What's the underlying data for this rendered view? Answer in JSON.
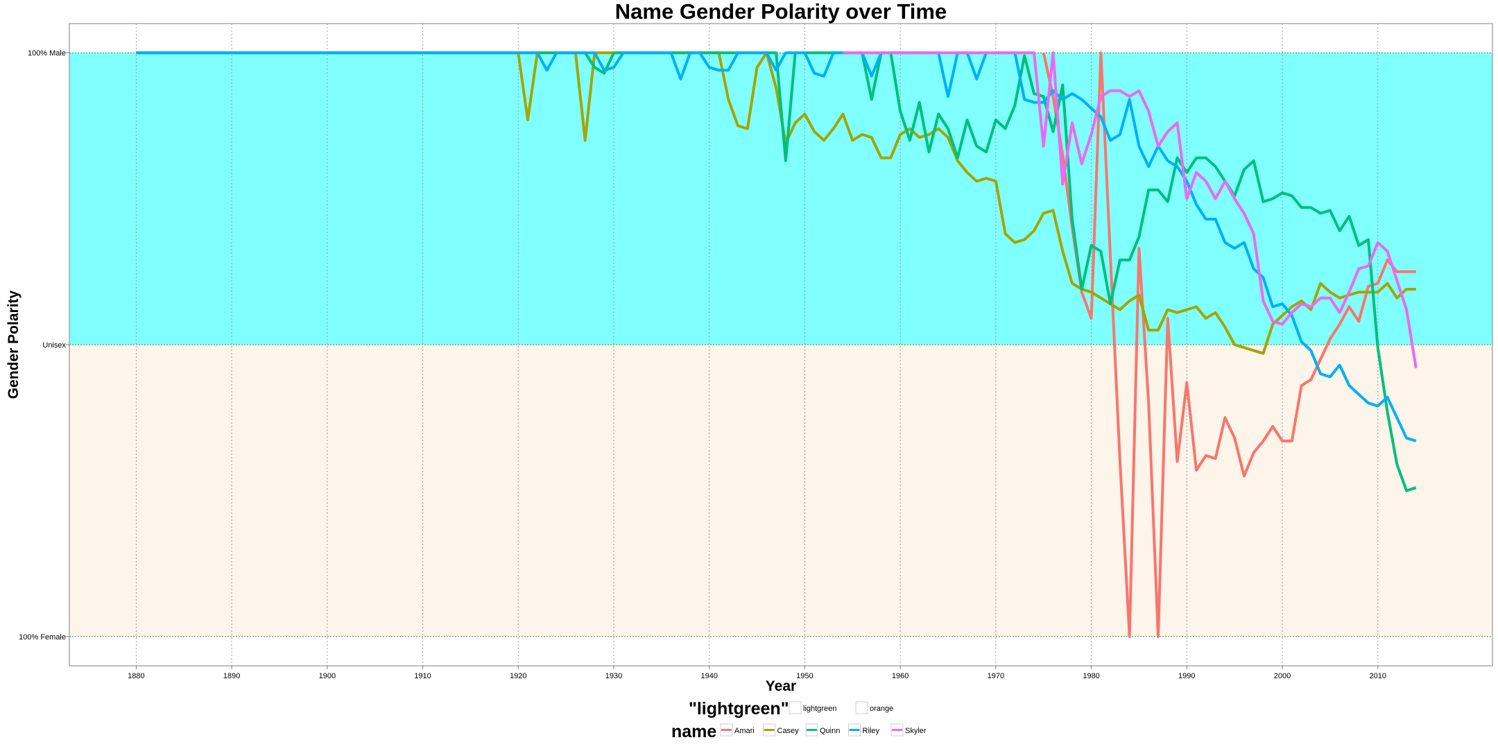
{
  "chart_data": {
    "type": "line",
    "title": "Name Gender Polarity over Time",
    "xlabel": "Year",
    "ylabel": "Gender Polarity",
    "xlim": [
      1873,
      2022
    ],
    "ylim": [
      -1.1,
      1.1
    ],
    "x_ticks": [
      1880,
      1890,
      1900,
      1910,
      1920,
      1930,
      1940,
      1950,
      1960,
      1970,
      1980,
      1990,
      2000,
      2010
    ],
    "y_ticks": [
      {
        "value": 1,
        "label": "100% Male"
      },
      {
        "value": 0,
        "label": "Unisex"
      },
      {
        "value": -1,
        "label": "100% Female"
      }
    ],
    "grid": true,
    "bands": [
      {
        "from": 0,
        "to": 1,
        "color": "#80ffff",
        "label": "lightgreen"
      },
      {
        "from": -1,
        "to": 0,
        "color": "#fdf4ea",
        "label": "orange"
      }
    ],
    "legend": {
      "position": "bottom",
      "fill_title": "\"lightgreen\"",
      "fill_entries": [
        "lightgreen",
        "orange"
      ],
      "color_title": "name"
    },
    "series": [
      {
        "name": "Amari",
        "color": "#f8766d",
        "x": [
          1975,
          1976,
          1977,
          1978,
          1979,
          1980,
          1981,
          1982,
          1983,
          1984,
          1985,
          1986,
          1987,
          1988,
          1989,
          1990,
          1991,
          1992,
          1993,
          1994,
          1995,
          1996,
          1997,
          1998,
          1999,
          2000,
          2001,
          2002,
          2003,
          2004,
          2005,
          2006,
          2007,
          2008,
          2009,
          2010,
          2011,
          2012,
          2013,
          2014
        ],
        "y": [
          1.0,
          0.85,
          0.65,
          0.4,
          0.18,
          0.09,
          1.0,
          0.3,
          -0.4,
          -1.0,
          0.33,
          -0.2,
          -1.0,
          0.09,
          -0.4,
          -0.13,
          -0.43,
          -0.38,
          -0.39,
          -0.25,
          -0.32,
          -0.45,
          -0.37,
          -0.33,
          -0.28,
          -0.33,
          -0.33,
          -0.14,
          -0.12,
          -0.05,
          0.02,
          0.07,
          0.13,
          0.08,
          0.2,
          0.21,
          0.29,
          0.25,
          0.25,
          0.25
        ]
      },
      {
        "name": "Casey",
        "color": "#a3a500",
        "x": [
          1880,
          1919,
          1920,
          1921,
          1922,
          1926,
          1927,
          1928,
          1941,
          1942,
          1943,
          1944,
          1945,
          1946,
          1947,
          1948,
          1949,
          1950,
          1951,
          1952,
          1953,
          1954,
          1955,
          1956,
          1957,
          1958,
          1959,
          1960,
          1961,
          1962,
          1963,
          1964,
          1965,
          1966,
          1967,
          1968,
          1969,
          1970,
          1971,
          1972,
          1973,
          1974,
          1975,
          1976,
          1977,
          1978,
          1979,
          1980,
          1981,
          1982,
          1983,
          1984,
          1985,
          1986,
          1987,
          1988,
          1989,
          1990,
          1991,
          1992,
          1993,
          1994,
          1995,
          1996,
          1997,
          1998,
          1999,
          2000,
          2001,
          2002,
          2003,
          2004,
          2005,
          2006,
          2007,
          2008,
          2009,
          2010,
          2011,
          2012,
          2013,
          2014
        ],
        "y": [
          1.0,
          1.0,
          1.0,
          0.77,
          1.0,
          1.0,
          0.7,
          1.0,
          1.0,
          0.84,
          0.75,
          0.74,
          0.95,
          1.0,
          0.88,
          0.69,
          0.76,
          0.79,
          0.73,
          0.7,
          0.74,
          0.79,
          0.7,
          0.72,
          0.71,
          0.64,
          0.64,
          0.72,
          0.74,
          0.71,
          0.72,
          0.74,
          0.71,
          0.63,
          0.59,
          0.56,
          0.57,
          0.56,
          0.38,
          0.35,
          0.36,
          0.39,
          0.45,
          0.46,
          0.32,
          0.21,
          0.19,
          0.18,
          0.16,
          0.14,
          0.12,
          0.15,
          0.17,
          0.05,
          0.05,
          0.12,
          0.11,
          0.12,
          0.13,
          0.09,
          0.11,
          0.06,
          0.0,
          -0.01,
          -0.02,
          -0.03,
          0.07,
          0.1,
          0.13,
          0.15,
          0.12,
          0.21,
          0.18,
          0.16,
          0.17,
          0.18,
          0.18,
          0.18,
          0.21,
          0.16,
          0.19,
          0.19
        ]
      },
      {
        "name": "Quinn",
        "color": "#00bf7d",
        "x": [
          1880,
          1920,
          1921,
          1922,
          1923,
          1924,
          1925,
          1926,
          1927,
          1928,
          1929,
          1930,
          1931,
          1932,
          1936,
          1937,
          1938,
          1939,
          1946,
          1947,
          1948,
          1949,
          1950,
          1951,
          1956,
          1957,
          1958,
          1959,
          1960,
          1961,
          1962,
          1963,
          1964,
          1965,
          1966,
          1967,
          1968,
          1969,
          1970,
          1971,
          1972,
          1973,
          1974,
          1975,
          1976,
          1977,
          1978,
          1979,
          1980,
          1981,
          1982,
          1983,
          1984,
          1985,
          1986,
          1987,
          1988,
          1989,
          1990,
          1991,
          1992,
          1993,
          1994,
          1995,
          1996,
          1997,
          1998,
          1999,
          2000,
          2001,
          2002,
          2003,
          2004,
          2005,
          2006,
          2007,
          2008,
          2009,
          2010,
          2011,
          2012,
          2013,
          2014
        ],
        "y": [
          1.0,
          1.0,
          1.0,
          1.0,
          1.0,
          1.0,
          1.0,
          1.0,
          1.0,
          0.95,
          0.93,
          1.0,
          1.0,
          1.0,
          1.0,
          1.0,
          1.0,
          1.0,
          1.0,
          1.0,
          0.63,
          1.0,
          1.0,
          1.0,
          1.0,
          0.84,
          1.0,
          1.0,
          0.8,
          0.7,
          0.83,
          0.66,
          0.79,
          0.74,
          0.64,
          0.77,
          0.68,
          0.66,
          0.77,
          0.74,
          0.82,
          0.99,
          0.86,
          0.85,
          0.73,
          0.89,
          0.43,
          0.19,
          0.34,
          0.32,
          0.14,
          0.29,
          0.29,
          0.37,
          0.53,
          0.53,
          0.49,
          0.64,
          0.59,
          0.64,
          0.64,
          0.61,
          0.56,
          0.51,
          0.6,
          0.63,
          0.49,
          0.5,
          0.52,
          0.51,
          0.47,
          0.47,
          0.45,
          0.46,
          0.39,
          0.44,
          0.34,
          0.36,
          -0.01,
          -0.23,
          -0.41,
          -0.5,
          -0.49
        ]
      },
      {
        "name": "Riley",
        "color": "#00b0f6",
        "x": [
          1880,
          1922,
          1923,
          1924,
          1925,
          1926,
          1927,
          1928,
          1929,
          1930,
          1931,
          1932,
          1935,
          1936,
          1937,
          1938,
          1939,
          1940,
          1941,
          1942,
          1943,
          1944,
          1945,
          1946,
          1947,
          1948,
          1949,
          1950,
          1951,
          1952,
          1953,
          1954,
          1955,
          1956,
          1957,
          1958,
          1963,
          1964,
          1965,
          1966,
          1967,
          1968,
          1969,
          1970,
          1971,
          1972,
          1973,
          1974,
          1975,
          1976,
          1977,
          1978,
          1979,
          1980,
          1981,
          1982,
          1983,
          1984,
          1985,
          1986,
          1987,
          1988,
          1989,
          1990,
          1991,
          1992,
          1993,
          1994,
          1995,
          1996,
          1997,
          1998,
          1999,
          2000,
          2001,
          2002,
          2003,
          2004,
          2005,
          2006,
          2007,
          2008,
          2009,
          2010,
          2011,
          2012,
          2013,
          2014
        ],
        "y": [
          1.0,
          1.0,
          0.94,
          1.0,
          1.0,
          1.0,
          1.0,
          1.0,
          0.94,
          0.95,
          1.0,
          1.0,
          1.0,
          1.0,
          0.91,
          1.0,
          1.0,
          0.95,
          0.94,
          0.94,
          1.0,
          1.0,
          1.0,
          1.0,
          0.94,
          1.0,
          1.0,
          1.0,
          0.93,
          0.92,
          1.0,
          1.0,
          1.0,
          1.0,
          0.92,
          1.0,
          1.0,
          1.0,
          0.85,
          1.0,
          1.0,
          0.91,
          1.0,
          1.0,
          1.0,
          1.0,
          0.84,
          0.83,
          0.83,
          0.87,
          0.84,
          0.86,
          0.84,
          0.81,
          0.78,
          0.7,
          0.72,
          0.84,
          0.68,
          0.61,
          0.68,
          0.63,
          0.61,
          0.56,
          0.48,
          0.43,
          0.43,
          0.35,
          0.33,
          0.35,
          0.26,
          0.23,
          0.13,
          0.14,
          0.1,
          0.01,
          -0.02,
          -0.1,
          -0.11,
          -0.07,
          -0.14,
          -0.17,
          -0.2,
          -0.21,
          -0.18,
          -0.25,
          -0.32,
          -0.33
        ]
      },
      {
        "name": "Skyler",
        "color": "#e76bf3",
        "x": [
          1954,
          1974,
          1975,
          1976,
          1977,
          1978,
          1979,
          1980,
          1981,
          1982,
          1983,
          1984,
          1985,
          1986,
          1987,
          1988,
          1989,
          1990,
          1991,
          1992,
          1993,
          1994,
          1995,
          1996,
          1997,
          1998,
          1999,
          2000,
          2001,
          2002,
          2003,
          2004,
          2005,
          2006,
          2007,
          2008,
          2009,
          2010,
          2011,
          2012,
          2013,
          2014
        ],
        "y": [
          1.0,
          1.0,
          0.68,
          1.0,
          0.55,
          0.76,
          0.62,
          0.72,
          0.85,
          0.87,
          0.87,
          0.85,
          0.87,
          0.8,
          0.68,
          0.73,
          0.76,
          0.5,
          0.59,
          0.56,
          0.5,
          0.56,
          0.5,
          0.45,
          0.38,
          0.15,
          0.08,
          0.07,
          0.11,
          0.14,
          0.13,
          0.16,
          0.16,
          0.11,
          0.18,
          0.26,
          0.27,
          0.35,
          0.32,
          0.22,
          0.12,
          -0.08
        ]
      }
    ]
  }
}
